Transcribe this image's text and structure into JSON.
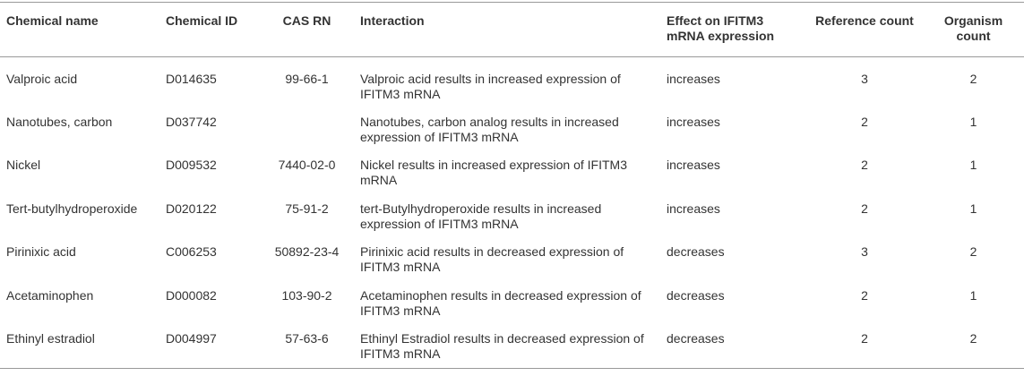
{
  "table": {
    "header": [
      "Chemical name",
      "Chemical ID",
      "CAS RN",
      "Interaction",
      "Effect on IFITM3 mRNA expression",
      "Reference count",
      "Organism count"
    ],
    "rows": [
      [
        "Valproic acid",
        "D014635",
        "99-66-1",
        "Valproic acid results in increased expression of IFITM3 mRNA",
        "increases",
        3,
        2
      ],
      [
        "Nanotubes, carbon",
        "D037742",
        null,
        "Nanotubes, carbon analog results in increased expression of IFITM3 mRNA",
        "increases",
        2,
        1
      ],
      [
        "Nickel",
        "D009532",
        "7440-02-0",
        "Nickel results in increased expression of IFITM3 mRNA",
        "increases",
        2,
        1
      ],
      [
        "Tert-butylhydroperoxide",
        "D020122",
        "75-91-2",
        "tert-Butylhydroperoxide results in increased expression of IFITM3 mRNA",
        "increases",
        2,
        1
      ],
      [
        "Pirinixic acid",
        "C006253",
        "50892-23-4",
        "Pirinixic acid results in decreased expression of IFITM3 mRNA",
        "decreases",
        3,
        2
      ],
      [
        "Acetaminophen",
        "D000082",
        "103-90-2",
        "Acetaminophen results in decreased expression of IFITM3 mRNA",
        "decreases",
        2,
        1
      ],
      [
        "Ethinyl estradiol",
        "D004997",
        "57-63-6",
        "Ethinyl Estradiol results in decreased expression of IFITM3 mRNA",
        "decreases",
        2,
        2
      ]
    ]
  }
}
